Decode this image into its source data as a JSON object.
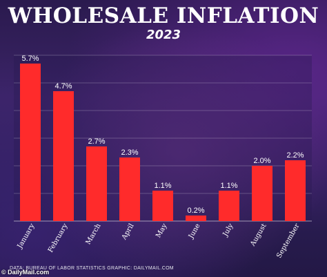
{
  "chart_data": {
    "type": "bar",
    "title": "WHOLESALE INFLATION",
    "subtitle": "2023",
    "categories": [
      "January",
      "February",
      "March",
      "April",
      "May",
      "June",
      "July",
      "August",
      "September"
    ],
    "values": [
      5.7,
      4.7,
      2.7,
      2.3,
      1.1,
      0.2,
      1.1,
      2.0,
      2.2
    ],
    "value_labels": [
      "5.7%",
      "4.7%",
      "2.7%",
      "2.3%",
      "1.1%",
      "0.2%",
      "1.1%",
      "2.0%",
      "2.2%"
    ],
    "xlabel": "",
    "ylabel": "",
    "ylim": [
      0,
      6
    ],
    "grid": true,
    "bar_color": "#ff2b2b"
  },
  "footer": {
    "source": "DATA: BUREAU OF LABOR STATISTICS      GRAPHIC: DAILYMAIL.COM",
    "logo": "© DailyMail.com"
  }
}
